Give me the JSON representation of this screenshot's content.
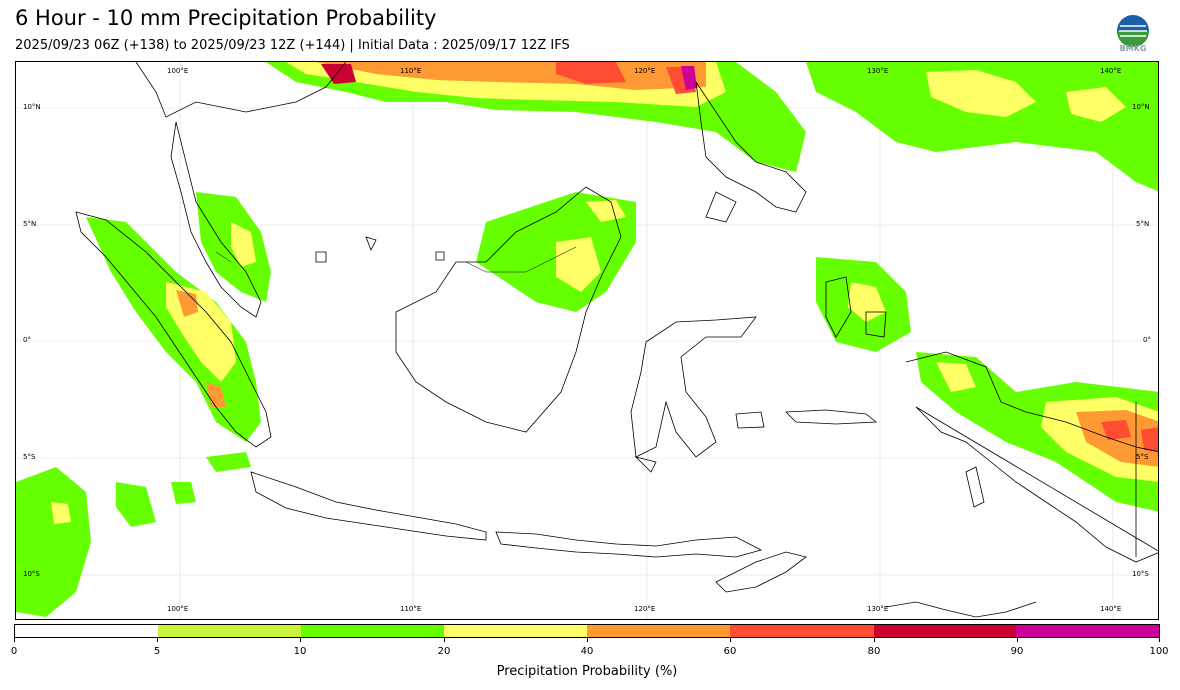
{
  "header": {
    "title": "6 Hour - 10 mm Precipitation Probability",
    "subtitle": "2025/09/23 06Z (+138) to 2025/09/23 12Z (+144) | Initial Data : 2025/09/17 12Z IFS"
  },
  "logo": {
    "text": "BMKG"
  },
  "map": {
    "lon_labels": [
      "100°E",
      "110°E",
      "120°E",
      "130°E",
      "140°E"
    ],
    "lat_labels": [
      "10°N",
      "5°N",
      "0°",
      "5°S",
      "10°S"
    ]
  },
  "legend": {
    "title": "Precipitation Probability (%)",
    "ticks": [
      "0",
      "5",
      "10",
      "20",
      "40",
      "60",
      "80",
      "90",
      "100"
    ],
    "colors": [
      "#ffffff",
      "#c8f53c",
      "#66ff00",
      "#ffff66",
      "#ff9933",
      "#ff4d33",
      "#cc0033",
      "#cc0099"
    ]
  }
}
